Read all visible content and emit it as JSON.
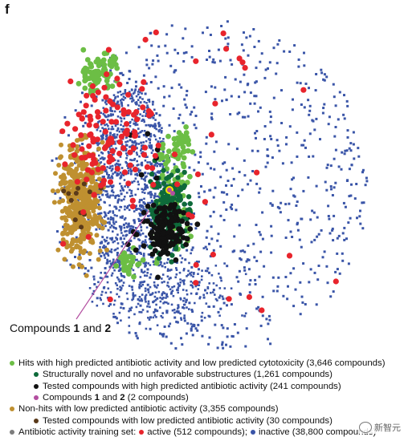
{
  "panel_label": "f",
  "annotation": {
    "prefix": "Compounds ",
    "a": "1",
    "mid": " and ",
    "b": "2"
  },
  "colors": {
    "inactive": "#3a55a8",
    "active": "#e8242c",
    "hits_low_tox": "#6cbe45",
    "novel": "#0e6a3a",
    "tested_high": "#111111",
    "compounds_1_2": "#b34ea0",
    "highlight_ring": "#f3e600",
    "nonhits": "#bf9030",
    "tested_low": "#5a3a1a",
    "training": "#7d7d7d"
  },
  "legend": {
    "hits": "Hits with high predicted antibiotic activity and low predicted cytotoxicity (3,646 compounds)",
    "novel": "Structurally novel and no unfavorable substructures (1,261 compounds)",
    "tested_high": "Tested compounds with high predicted antibiotic activity (241 compounds)",
    "c12_a": "Compounds ",
    "c12_b": "1",
    "c12_c": " and ",
    "c12_d": "2",
    "c12_e": " (2 compounds)",
    "nonhits": "Non-hits with low predicted antibiotic activity (3,355 compounds)",
    "tested_low": "Tested compounds with low predicted antibiotic activity (30 compounds)",
    "training_prefix": "Antibiotic activity training set:",
    "active": "active (512 compounds);",
    "inactive": "inactive (38,800 compounds)"
  },
  "watermark": "新智元",
  "chart_data": {
    "type": "scatter",
    "title": "",
    "xlabel": "",
    "ylabel": "",
    "grid": false,
    "series": [
      {
        "name": "inactive (38,800 compounds)",
        "color_key": "inactive",
        "marker": "square"
      },
      {
        "name": "Non-hits with low predicted antibiotic activity (3,355 compounds)",
        "color_key": "nonhits",
        "marker": "circle"
      },
      {
        "name": "Hits with high predicted antibiotic activity and low predicted cytotoxicity (3,646 compounds)",
        "color_key": "hits_low_tox",
        "marker": "circle"
      },
      {
        "name": "active (512 compounds)",
        "color_key": "active",
        "marker": "circle"
      },
      {
        "name": "Structurally novel and no unfavorable substructures (1,261 compounds)",
        "color_key": "novel",
        "marker": "circle"
      },
      {
        "name": "Tested compounds with high predicted antibiotic activity (241 compounds)",
        "color_key": "tested_high",
        "marker": "circle"
      },
      {
        "name": "Tested compounds with low predicted antibiotic activity (30 compounds)",
        "color_key": "tested_low",
        "marker": "circle"
      },
      {
        "name": "Compounds 1 and 2 (2 compounds)",
        "color_key": "compounds_1_2",
        "marker": "circle"
      }
    ]
  }
}
